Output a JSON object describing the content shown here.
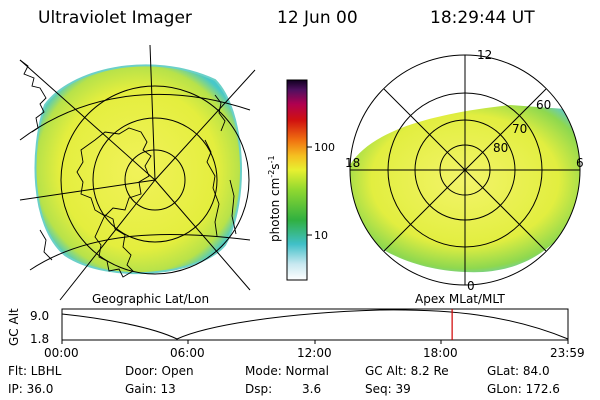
{
  "header": {
    "title": "Ultraviolet Imager",
    "date": "12 Jun 00",
    "time": "18:29:44 UT"
  },
  "colorbar": {
    "unit_label": "photon cm",
    "unit_sup1": "-2",
    "unit_mid": "s",
    "unit_sup2": "-1",
    "ticks": [
      "100",
      "10"
    ]
  },
  "left_panel": {
    "caption": "Geographic Lat/Lon"
  },
  "right_panel": {
    "caption": "Apex MLat/MLT",
    "lat_labels": [
      "60",
      "70",
      "80"
    ],
    "mlt_labels": [
      "12",
      "18",
      "6",
      "0"
    ]
  },
  "timeline": {
    "ylabel": "GC Alt",
    "y_top": "9.0",
    "y_bottom": "1.8",
    "ticks": [
      "00:00",
      "06:00",
      "12:00",
      "18:00",
      "23:59"
    ],
    "marker_time_fraction": 0.771
  },
  "status": {
    "flt": "Flt: LBHL",
    "ip": "IP: 36.0",
    "door": "Door: Open",
    "gain": "Gain: 13",
    "mode": "Mode: Normal",
    "dsp_label": "Dsp:",
    "dsp_value": "3.6",
    "gcalt": "GC Alt: 8.2 Re",
    "seq": "Seq: 39",
    "glat": "GLat:  84.0",
    "glon": "GLon: 172.6"
  },
  "colors": {
    "aurora_yellow": "#e6ee3a",
    "aurora_green": "#5fd05a",
    "marker_red": "#d00000"
  }
}
